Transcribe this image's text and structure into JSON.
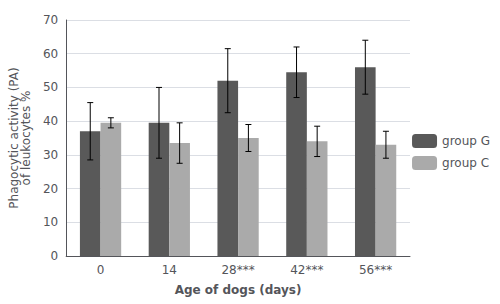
{
  "chart_data": {
    "type": "bar",
    "categories": [
      "0",
      "14",
      "28***",
      "42***",
      "56***"
    ],
    "series": [
      {
        "name": "group G",
        "color": "#595959",
        "values": [
          37.0,
          39.5,
          52.0,
          54.5,
          56.0
        ],
        "errors": [
          8.5,
          10.5,
          9.5,
          7.5,
          8.0
        ]
      },
      {
        "name": "group C",
        "color": "#aaaaaa",
        "values": [
          39.5,
          33.5,
          35.0,
          34.0,
          33.0
        ],
        "errors": [
          1.5,
          6.0,
          4.0,
          4.5,
          4.0
        ]
      }
    ],
    "xlabel": "Age of dogs (days)",
    "ylabel": "Phagocytic activity (PA)\nof leukocytes %",
    "ylim": [
      0,
      70
    ],
    "yticks": [
      0,
      10,
      20,
      30,
      40,
      50,
      60,
      70
    ],
    "grid": true,
    "legend": "right"
  }
}
